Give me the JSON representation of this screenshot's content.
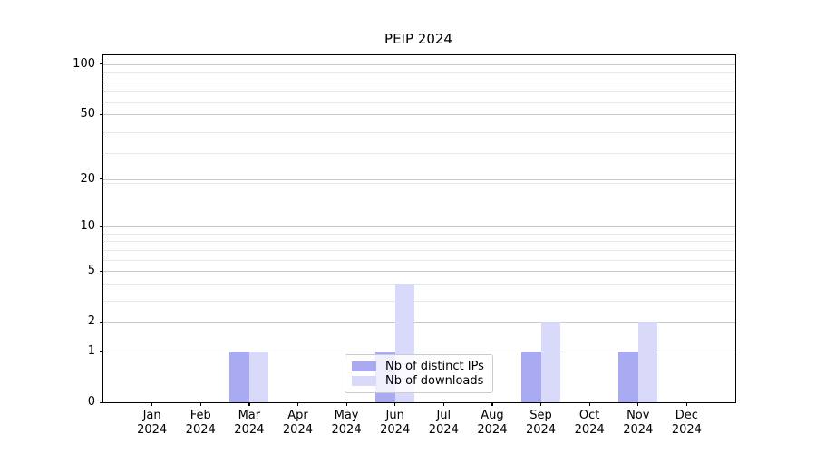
{
  "title": "PEIP 2024",
  "legend": {
    "items": [
      {
        "label": "Nb of distinct IPs",
        "color": "#aaaaf2"
      },
      {
        "label": "Nb of downloads",
        "color": "#d9d9f9"
      }
    ]
  },
  "colors": {
    "grid_major": "#c9c9c9",
    "grid_minor": "#e9e9e9",
    "spine": "#000000",
    "background": "#ffffff",
    "bar_distinct_ips": "#aaaaf2",
    "bar_downloads": "#d9d9f9"
  },
  "chart_data": {
    "type": "bar",
    "title": "PEIP 2024",
    "categories": [
      "Jan 2024",
      "Feb 2024",
      "Mar 2024",
      "Apr 2024",
      "May 2024",
      "Jun 2024",
      "Jul 2024",
      "Aug 2024",
      "Sep 2024",
      "Oct 2024",
      "Nov 2024",
      "Dec 2024"
    ],
    "month_labels": [
      {
        "month": "Jan",
        "year": "2024"
      },
      {
        "month": "Feb",
        "year": "2024"
      },
      {
        "month": "Mar",
        "year": "2024"
      },
      {
        "month": "Apr",
        "year": "2024"
      },
      {
        "month": "May",
        "year": "2024"
      },
      {
        "month": "Jun",
        "year": "2024"
      },
      {
        "month": "Jul",
        "year": "2024"
      },
      {
        "month": "Aug",
        "year": "2024"
      },
      {
        "month": "Sep",
        "year": "2024"
      },
      {
        "month": "Oct",
        "year": "2024"
      },
      {
        "month": "Nov",
        "year": "2024"
      },
      {
        "month": "Dec",
        "year": "2024"
      }
    ],
    "series": [
      {
        "name": "Nb of distinct IPs",
        "color": "#aaaaf2",
        "values": [
          0,
          0,
          1,
          0,
          0,
          1,
          0,
          0,
          1,
          0,
          1,
          0
        ]
      },
      {
        "name": "Nb of downloads",
        "color": "#d9d9f9",
        "values": [
          0,
          0,
          1,
          0,
          0,
          4,
          0,
          0,
          2,
          0,
          2,
          0
        ]
      }
    ],
    "xlabel": "",
    "ylabel": "",
    "y_scale": "log1p",
    "ylim": [
      0,
      113
    ],
    "y_major_ticks": [
      0,
      1,
      2,
      5,
      10,
      20,
      50,
      100
    ],
    "y_minor_ticks": [
      3,
      4,
      6,
      7,
      8,
      9,
      19,
      29,
      39,
      59,
      69,
      79,
      89
    ],
    "grid": true,
    "legend_position": "lower center"
  }
}
